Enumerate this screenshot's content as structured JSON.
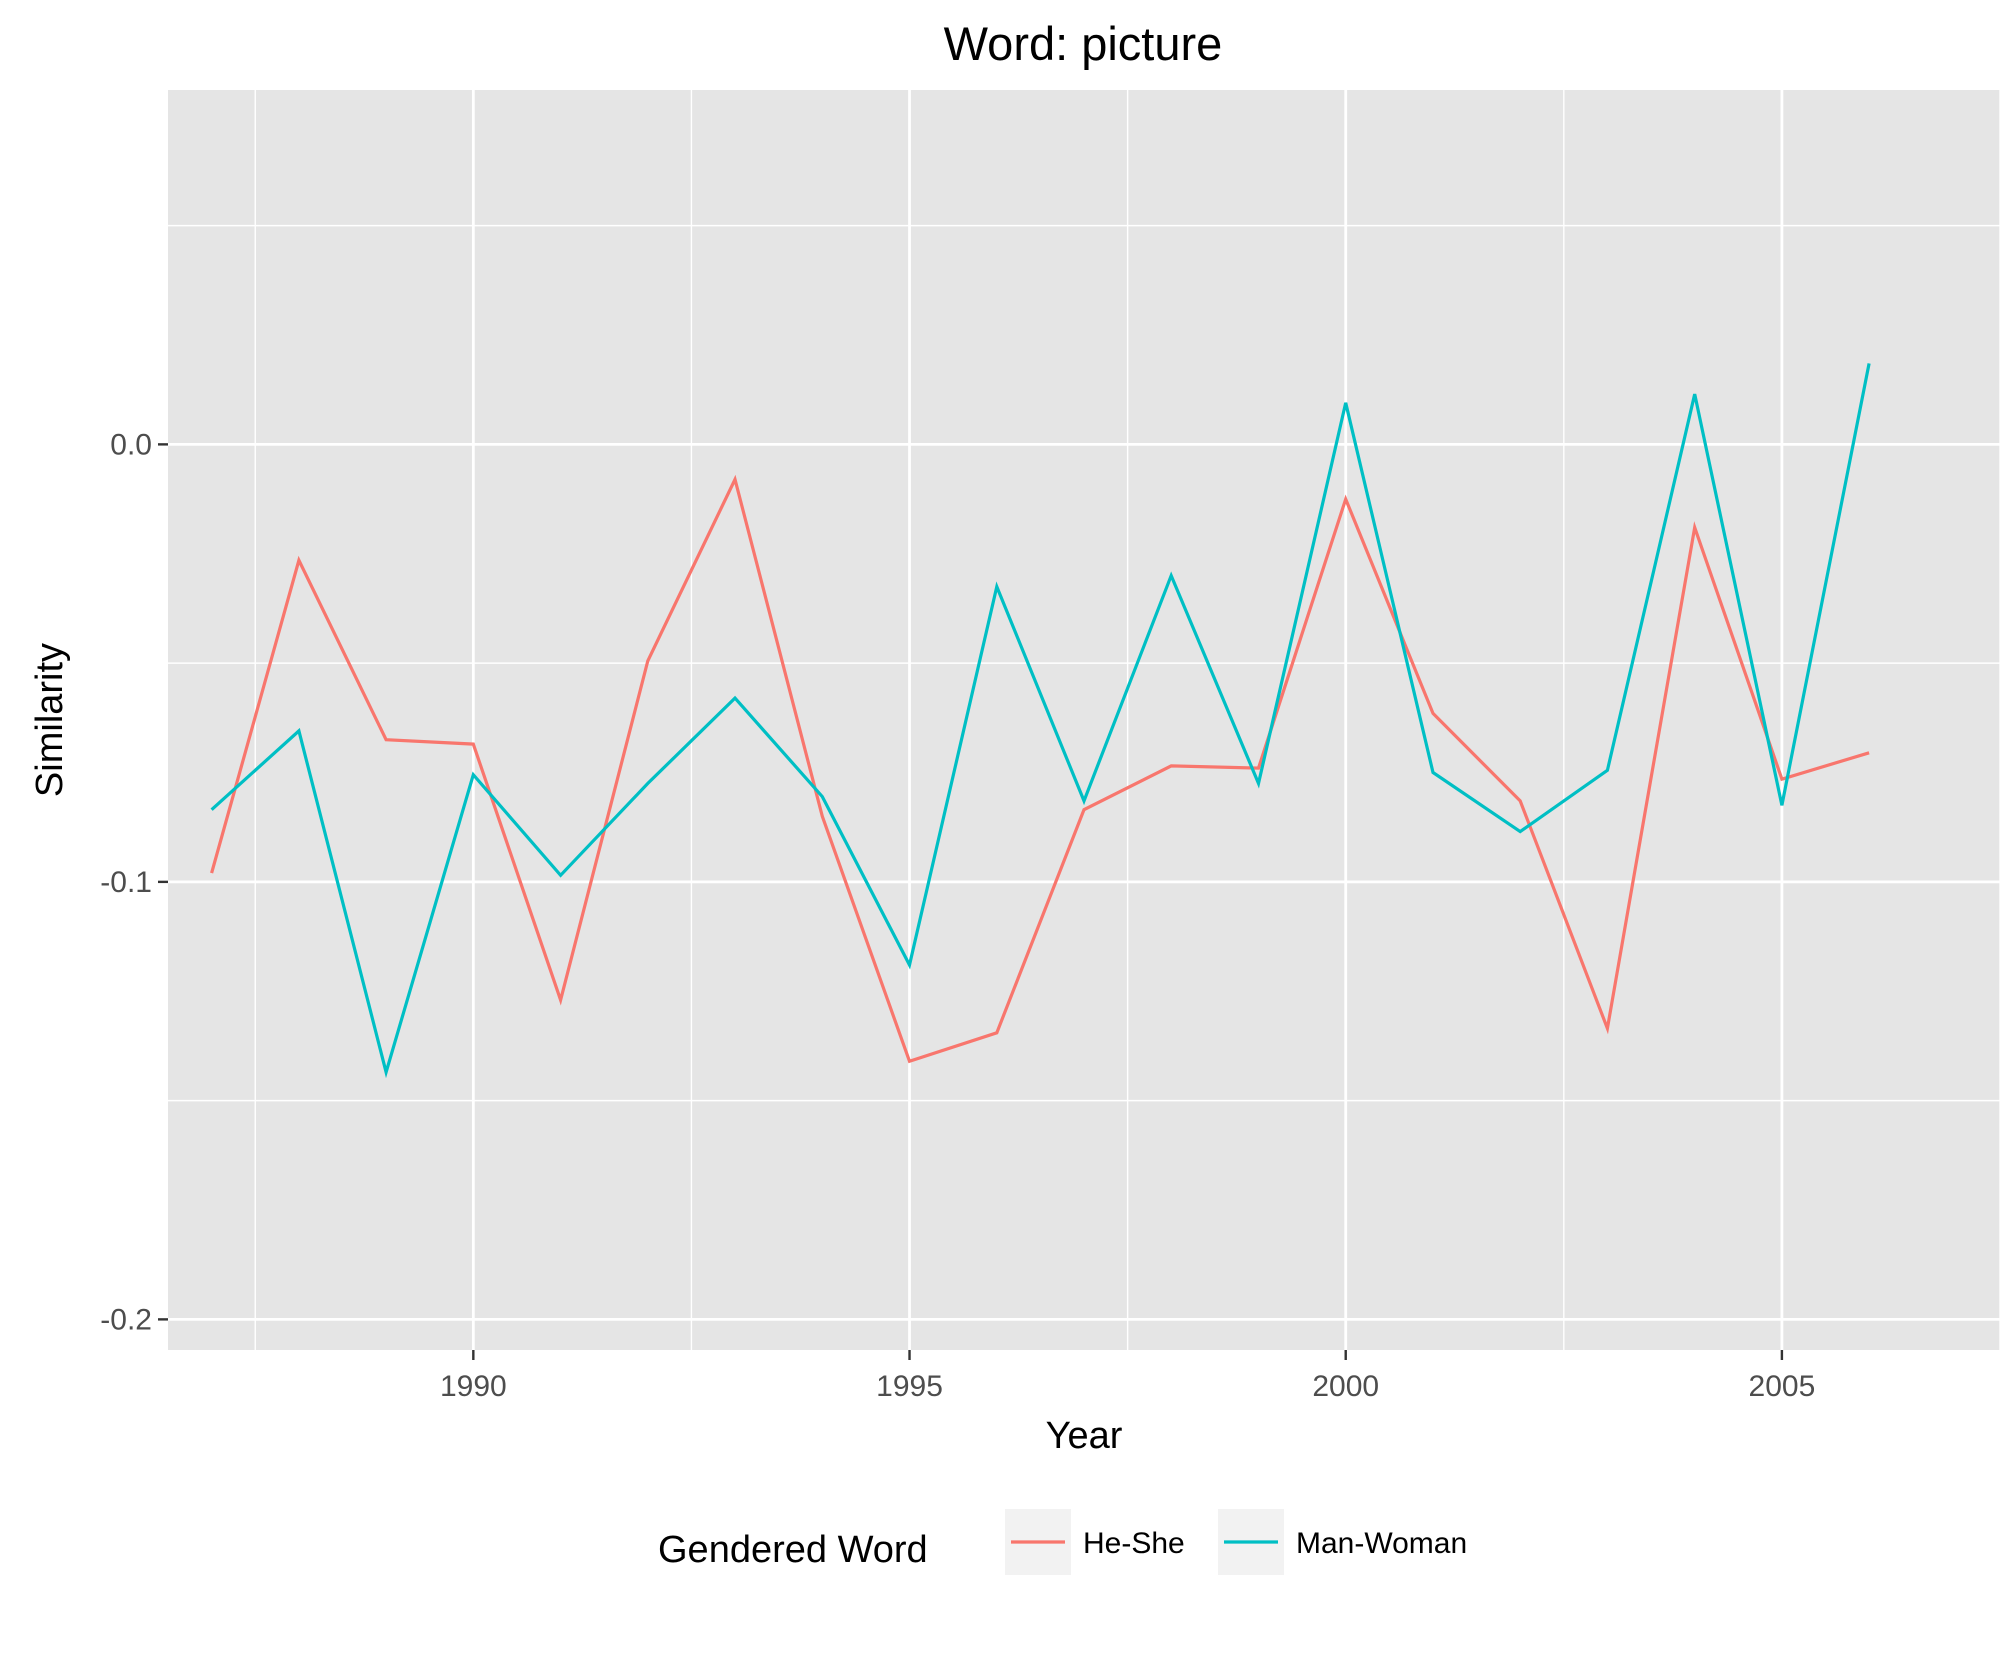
{
  "chart_data": {
    "type": "line",
    "title": "Word: picture",
    "xlabel": "Year",
    "ylabel": "Similarity",
    "xlim": [
      1986.5,
      2007.5
    ],
    "ylim": [
      -0.207,
      0.081
    ],
    "x_ticks": [
      1990,
      1995,
      2000,
      2005
    ],
    "x_tick_labels": [
      "1990",
      "1995",
      "2000",
      "2005"
    ],
    "x_minor_ticks": [
      1987.5,
      1992.5,
      1997.5,
      2002.5,
      2007.5
    ],
    "y_ticks": [
      -0.2,
      -0.1,
      0.0
    ],
    "y_tick_labels": [
      "-0.2",
      "-0.1",
      "0.0"
    ],
    "y_minor_ticks": [
      -0.15,
      -0.05,
      0.05
    ],
    "grid": true,
    "legend_position": "bottom",
    "legend_title": "Gendered Word",
    "x": [
      1987,
      1988,
      1989,
      1990,
      1991,
      1992,
      1993,
      1994,
      1995,
      1996,
      1997,
      1998,
      1999,
      2000,
      2001,
      2002,
      2003,
      2004,
      2005,
      2006
    ],
    "series": [
      {
        "name": "He-She",
        "color": "#F8766D",
        "values": [
          -0.098,
          -0.0265,
          -0.0675,
          -0.0685,
          -0.127,
          -0.0495,
          -0.008,
          -0.085,
          -0.141,
          -0.1345,
          -0.0835,
          -0.0735,
          -0.074,
          -0.0125,
          -0.0615,
          -0.0815,
          -0.1335,
          -0.019,
          -0.0765,
          -0.0705
        ]
      },
      {
        "name": "Man-Woman",
        "color": "#00BFC4",
        "values": [
          -0.0835,
          -0.0655,
          -0.1435,
          -0.0755,
          -0.0985,
          -0.0775,
          -0.058,
          -0.0805,
          -0.119,
          -0.0325,
          -0.0815,
          -0.03,
          -0.0775,
          0.0095,
          -0.075,
          -0.0885,
          -0.0745,
          0.0115,
          -0.0825,
          0.0185
        ]
      }
    ]
  }
}
